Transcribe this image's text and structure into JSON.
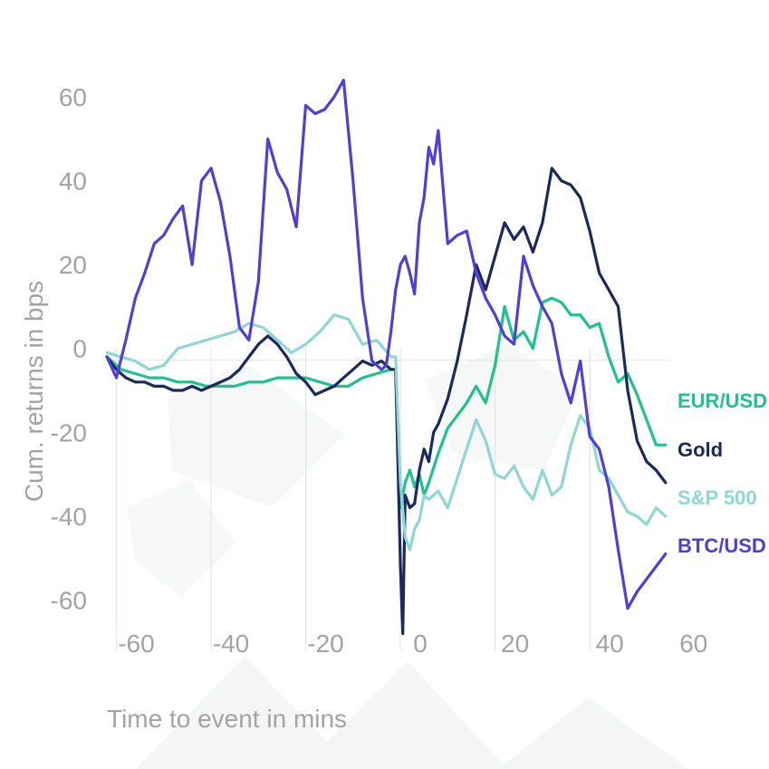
{
  "chart_data": {
    "type": "line",
    "title": "",
    "xlabel": "Time to event in mins",
    "ylabel": "Cum. returns in bps",
    "xlim": [
      -62,
      57
    ],
    "ylim": [
      -72,
      68
    ],
    "x_ticks": [
      -60,
      -40,
      -20,
      0,
      20,
      40,
      60
    ],
    "y_ticks": [
      60,
      40,
      20,
      0,
      -20,
      -40,
      -60
    ],
    "x_tick_labels": [
      "-60",
      "-40",
      "-20",
      "0",
      "20",
      "40",
      "60"
    ],
    "y_tick_labels": [
      "60",
      "40",
      "20",
      "0",
      "-20",
      "-40",
      "-60"
    ],
    "grid": "vertical",
    "legend_position": "right",
    "series": [
      {
        "name": "EUR/USD",
        "color": "#1fc28f",
        "x": [
          -62,
          -59,
          -56,
          -53,
          -50,
          -47,
          -44,
          -41,
          -38,
          -35,
          -32,
          -29,
          -26,
          -23,
          -20,
          -17,
          -14,
          -11,
          -8,
          -5,
          -2,
          -1,
          0,
          1,
          2,
          3,
          4,
          5,
          6,
          8,
          10,
          12,
          14,
          16,
          18,
          20,
          22,
          24,
          26,
          28,
          30,
          32,
          34,
          36,
          38,
          40,
          42,
          44,
          46,
          48,
          50,
          52,
          54,
          56
        ],
        "values": [
          -2,
          -5,
          -6,
          -7,
          -7,
          -8,
          -8,
          -9,
          -9,
          -9,
          -8,
          -8,
          -7,
          -7,
          -7,
          -8,
          -9,
          -9,
          -7,
          -6,
          -5,
          -5,
          -38,
          -32,
          -29,
          -33,
          -30,
          -35,
          -32,
          -25,
          -19,
          -16,
          -13,
          -9,
          -13,
          -4,
          10,
          2,
          4,
          0,
          11,
          12,
          11,
          8,
          8,
          5,
          6,
          -2,
          -8,
          -6,
          -11,
          -17,
          -23,
          -23
        ]
      },
      {
        "name": "Gold",
        "color": "#1b2a5c",
        "x": [
          -62,
          -60,
          -58,
          -56,
          -54,
          -52,
          -50,
          -48,
          -46,
          -44,
          -42,
          -40,
          -38,
          -36,
          -34,
          -32,
          -30,
          -28,
          -26,
          -24,
          -22,
          -20,
          -18,
          -16,
          -14,
          -12,
          -10,
          -8,
          -6,
          -4,
          -2,
          -1,
          0,
          0.5,
          1,
          2,
          3,
          4,
          5,
          6,
          7,
          8,
          10,
          12,
          14,
          16,
          18,
          20,
          22,
          24,
          26,
          28,
          30,
          32,
          34,
          36,
          38,
          40,
          42,
          44,
          46,
          48,
          50,
          52,
          54,
          56
        ],
        "values": [
          -2,
          -5,
          -7,
          -8,
          -8,
          -9,
          -9,
          -10,
          -10,
          -9,
          -10,
          -9,
          -8,
          -7,
          -5,
          -2,
          1,
          3,
          1,
          -2,
          -6,
          -8,
          -11,
          -10,
          -9,
          -7,
          -5,
          -3,
          -4,
          -3,
          -5,
          -5,
          -52,
          -68,
          -35,
          -38,
          -37,
          -29,
          -24,
          -27,
          -20,
          -18,
          -12,
          -3,
          8,
          20,
          14,
          22,
          30,
          26,
          29,
          23,
          30,
          43,
          40,
          39,
          36,
          28,
          18,
          14,
          10,
          -10,
          -22,
          -27,
          -29,
          -32
        ]
      },
      {
        "name": "S&P 500",
        "color": "#8fd6d6",
        "x": [
          -62,
          -59,
          -56,
          -53,
          -50,
          -47,
          -44,
          -41,
          -38,
          -35,
          -32,
          -29,
          -26,
          -23,
          -20,
          -17,
          -14,
          -11,
          -8,
          -5,
          -2,
          -1,
          0,
          1,
          2,
          3,
          4,
          5,
          6,
          8,
          10,
          12,
          14,
          16,
          18,
          20,
          22,
          24,
          26,
          28,
          30,
          32,
          34,
          36,
          38,
          40,
          42,
          44,
          46,
          48,
          50,
          52,
          54,
          56
        ],
        "values": [
          -1,
          -2,
          -3,
          -5,
          -4,
          0,
          1,
          2,
          3,
          4,
          6,
          5,
          2,
          -1,
          1,
          4,
          8,
          7,
          1,
          2,
          -2,
          -2,
          -32,
          -45,
          -48,
          -43,
          -41,
          -35,
          -36,
          -34,
          -38,
          -31,
          -24,
          -17,
          -22,
          -30,
          -31,
          -28,
          -33,
          -36,
          -29,
          -35,
          -33,
          -23,
          -16,
          -19,
          -29,
          -31,
          -35,
          -39,
          -40,
          -42,
          -38,
          -40
        ]
      },
      {
        "name": "BTC/USD",
        "color": "#4e3fd8",
        "x": [
          -62,
          -60,
          -58,
          -56,
          -54,
          -52,
          -50,
          -48,
          -46,
          -44,
          -42,
          -40,
          -38,
          -36,
          -34,
          -32,
          -30,
          -28,
          -26,
          -24,
          -22,
          -20,
          -18,
          -16,
          -14,
          -12,
          -10,
          -8,
          -6,
          -4,
          -3,
          -2,
          -1,
          0,
          1,
          2,
          3,
          4,
          5,
          6,
          7,
          8,
          10,
          12,
          14,
          16,
          18,
          20,
          22,
          24,
          26,
          28,
          30,
          32,
          34,
          36,
          38,
          40,
          42,
          44,
          46,
          48,
          50,
          52,
          54,
          56
        ],
        "values": [
          -2,
          -7,
          2,
          12,
          18,
          25,
          27,
          31,
          34,
          20,
          40,
          43,
          35,
          22,
          5,
          2,
          16,
          50,
          42,
          38,
          29,
          58,
          56,
          57,
          60,
          64,
          40,
          12,
          -3,
          -5,
          -4,
          4,
          14,
          20,
          22,
          18,
          13,
          30,
          36,
          48,
          44,
          52,
          25,
          27,
          28,
          18,
          12,
          8,
          3,
          1,
          22,
          15,
          10,
          6,
          -6,
          -13,
          -3,
          -21,
          -24,
          -33,
          -48,
          -62,
          -58,
          -55,
          -52,
          -49
        ]
      }
    ]
  }
}
